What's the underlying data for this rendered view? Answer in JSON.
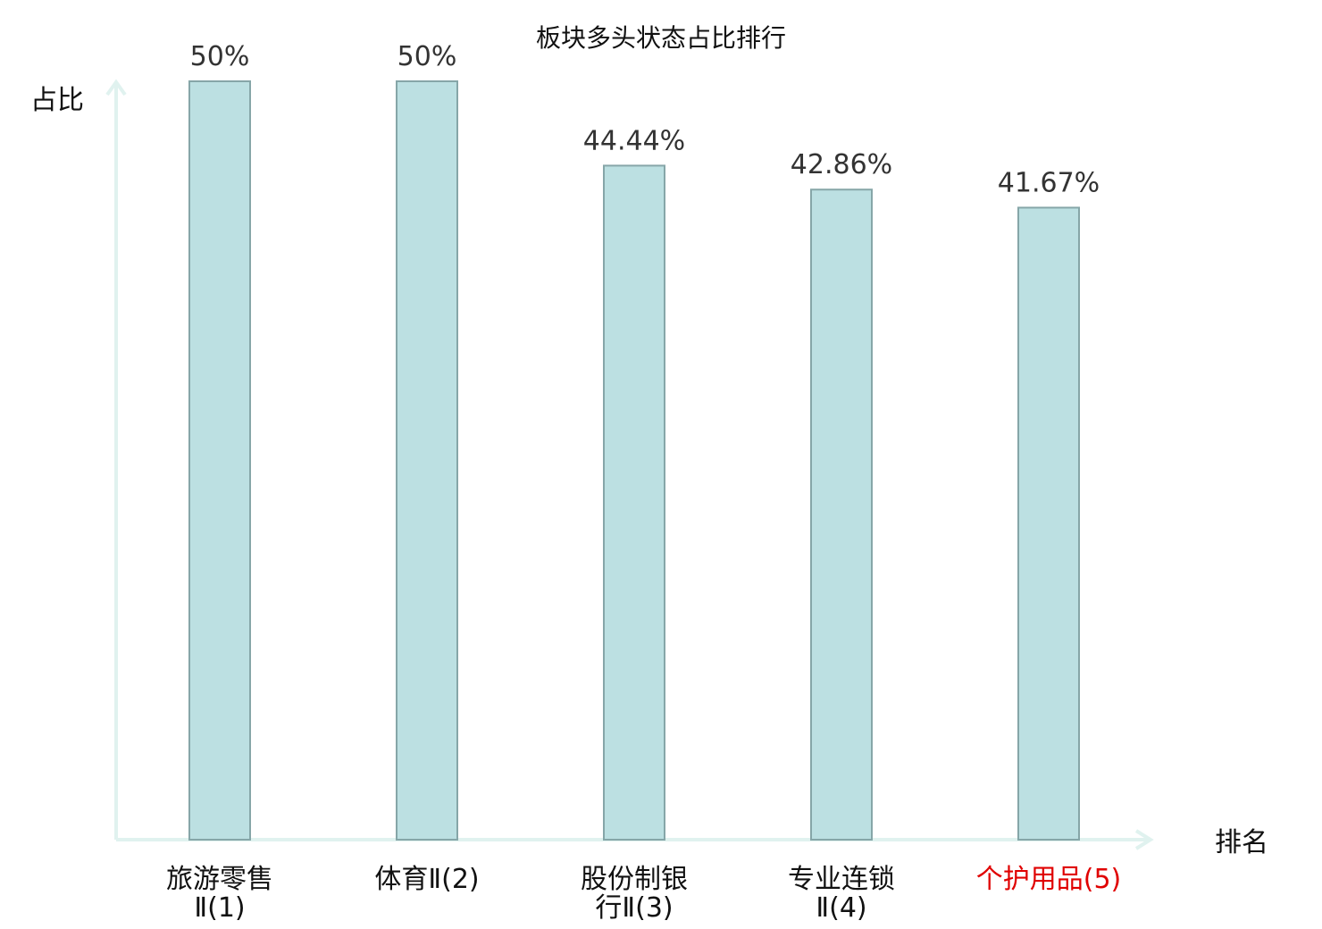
{
  "chart_data": {
    "type": "bar",
    "title": "板块多头状态占比排行",
    "xlabel": "排名",
    "ylabel": "占比",
    "ylim": [
      0,
      50
    ],
    "grid": false,
    "categories": [
      {
        "lines": [
          "旅游零售",
          "Ⅱ(1)"
        ],
        "highlight": false
      },
      {
        "lines": [
          "体育Ⅱ(2)"
        ],
        "highlight": false
      },
      {
        "lines": [
          "股份制银",
          "行Ⅱ(3)"
        ],
        "highlight": false
      },
      {
        "lines": [
          "专业连锁",
          "Ⅱ(4)"
        ],
        "highlight": false
      },
      {
        "lines": [
          "个护用品(5)"
        ],
        "highlight": true
      }
    ],
    "values": [
      50,
      50,
      44.44,
      42.86,
      41.67
    ],
    "value_labels": [
      "50%",
      "50%",
      "44.44%",
      "42.86%",
      "41.67%"
    ]
  },
  "colors": {
    "bar_fill": "#bce0e2",
    "bar_stroke": "#86a6a8",
    "axis": "#e0f2ef",
    "text": "#111111",
    "highlight_text": "#e00000"
  }
}
